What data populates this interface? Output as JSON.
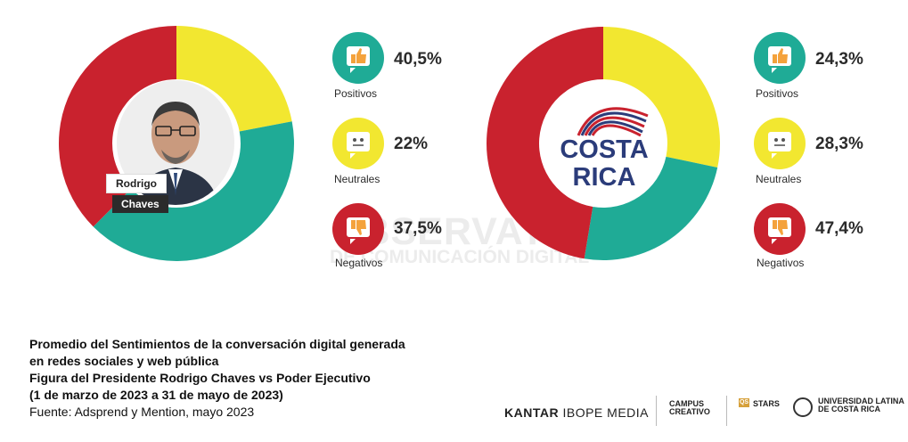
{
  "chart_data": [
    {
      "type": "pie",
      "subject": "Rodrigo Chaves",
      "slices": [
        {
          "label": "Positivos",
          "value": 40.5,
          "display": "40,5%",
          "color": "#1fab96"
        },
        {
          "label": "Neutrales",
          "value": 22,
          "display": "22%",
          "color": "#f2e730"
        },
        {
          "label": "Negativos",
          "value": 37.5,
          "display": "37,5%",
          "color": "#c9222e"
        }
      ]
    },
    {
      "type": "pie",
      "subject": "Costa Rica",
      "slices": [
        {
          "label": "Positivos",
          "value": 24.3,
          "display": "24,3%",
          "color": "#1fab96"
        },
        {
          "label": "Neutrales",
          "value": 28.3,
          "display": "28,3%",
          "color": "#f2e730"
        },
        {
          "label": "Negativos",
          "value": 47.4,
          "display": "47,4%",
          "color": "#c9222e"
        }
      ]
    }
  ],
  "photo_label": {
    "line1": "Rodrigo",
    "line2": "Chaves"
  },
  "cr_logo": {
    "line1": "COSTA",
    "line2": "RICA"
  },
  "watermark": {
    "line1": "OBSERVATORIO",
    "line2": "DE COMUNICACIÓN DIGITAL"
  },
  "caption": {
    "line1": "Promedio del Sentimientos de la conversación digital generada",
    "line2": "en redes sociales y web pública",
    "line3": "Figura del Presidente Rodrigo Chaves vs Poder Ejecutivo",
    "line4": "(1 de marzo de 2023 a 31 de mayo de 2023)",
    "source": "Fuente: Adsprend y Mention, mayo 2023"
  },
  "logos": {
    "kantar": "KANTAR",
    "kantar2": "IBOPE MEDIA",
    "campus1": "CAMPUS",
    "campus2": "CREATIVO",
    "stars_badge": "QS",
    "stars": "STARS",
    "ulatina1": "UNIVERSIDAD LATINA",
    "ulatina2": "DE COSTA RICA"
  },
  "icons": {
    "positive": "thumbs-up-icon",
    "neutral": "neutral-face-icon",
    "negative": "thumbs-down-icon"
  }
}
